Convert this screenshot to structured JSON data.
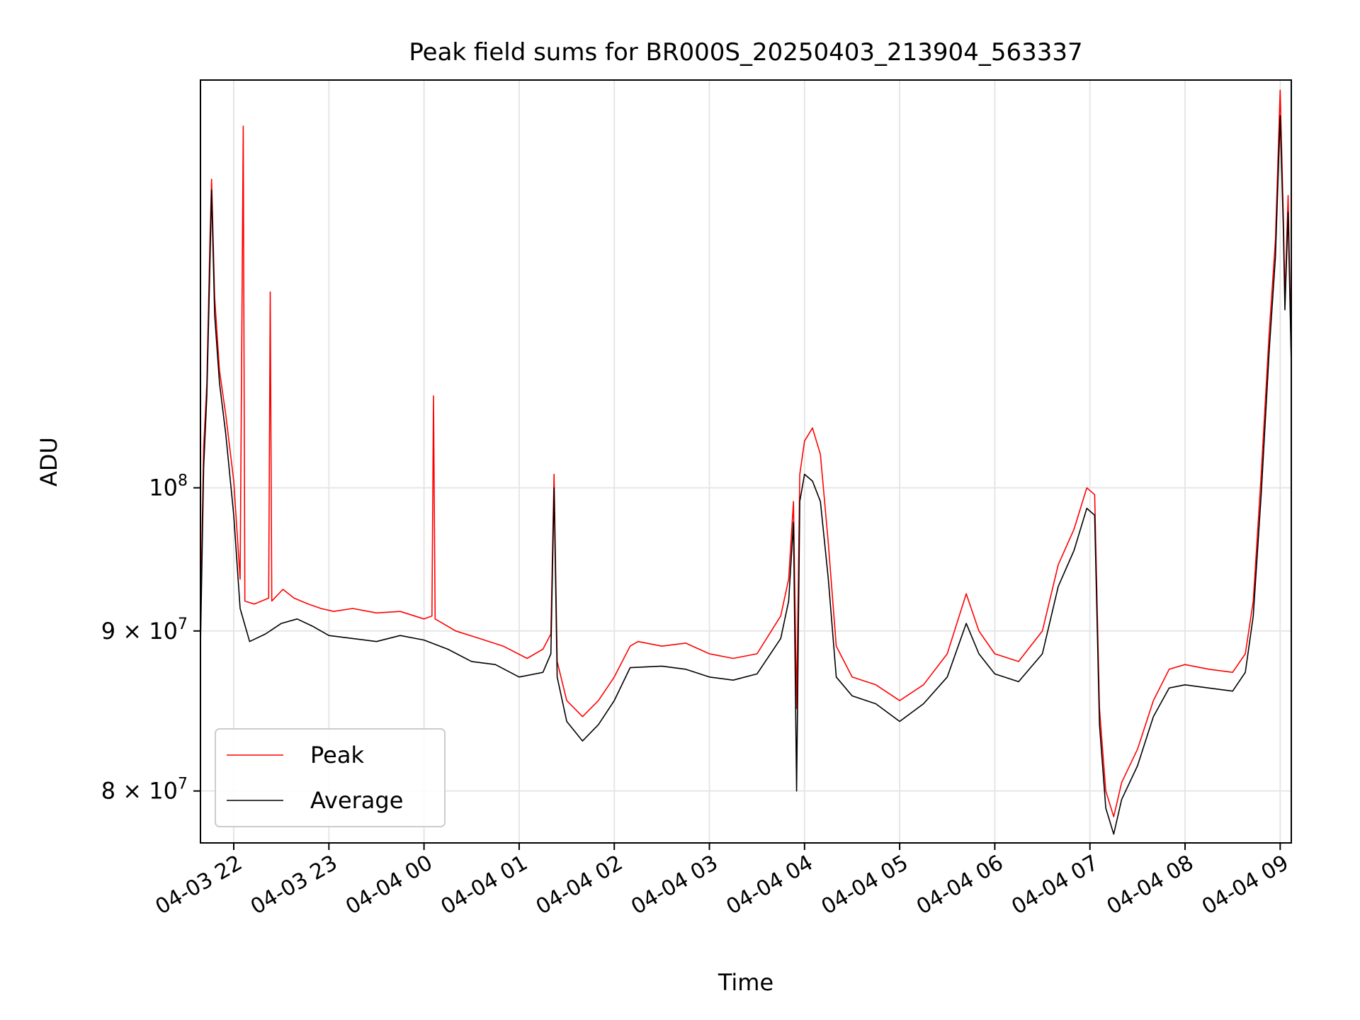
{
  "chart_data": {
    "type": "line",
    "title": "Peak field sums for BR000S_20250403_213904_563337",
    "xlabel": "Time",
    "ylabel": "ADU",
    "yscale": "log",
    "grid": true,
    "legend_position": "lower-left",
    "xlim": [
      "2025-04-03 21:39",
      "2025-04-04 09:07"
    ],
    "ylim": [
      77000000,
      135000000
    ],
    "x_ticks": [
      {
        "value": "2025-04-03 22:00",
        "label": "04-03 22"
      },
      {
        "value": "2025-04-03 23:00",
        "label": "04-03 23"
      },
      {
        "value": "2025-04-04 00:00",
        "label": "04-04 00"
      },
      {
        "value": "2025-04-04 01:00",
        "label": "04-04 01"
      },
      {
        "value": "2025-04-04 02:00",
        "label": "04-04 02"
      },
      {
        "value": "2025-04-04 03:00",
        "label": "04-04 03"
      },
      {
        "value": "2025-04-04 04:00",
        "label": "04-04 04"
      },
      {
        "value": "2025-04-04 05:00",
        "label": "04-04 05"
      },
      {
        "value": "2025-04-04 06:00",
        "label": "04-04 06"
      },
      {
        "value": "2025-04-04 07:00",
        "label": "04-04 07"
      },
      {
        "value": "2025-04-04 08:00",
        "label": "04-04 08"
      },
      {
        "value": "2025-04-04 09:00",
        "label": "04-04 09"
      }
    ],
    "y_ticks": [
      {
        "value": 80000000,
        "base": "8 × 10",
        "exp": "7"
      },
      {
        "value": 90000000,
        "base": "9 × 10",
        "exp": "7"
      },
      {
        "value": 100000000,
        "base": "10",
        "exp": "8"
      }
    ],
    "series": [
      {
        "name": "Peak",
        "color": "#ff0000",
        "points": [
          [
            "2025-04-03 21:39",
            90500000
          ],
          [
            "2025-04-03 21:41",
            103000000
          ],
          [
            "2025-04-03 21:43",
            108000000
          ],
          [
            "2025-04-03 21:45",
            120000000
          ],
          [
            "2025-04-03 21:46",
            125500000
          ],
          [
            "2025-04-03 21:48",
            115000000
          ],
          [
            "2025-04-03 21:51",
            109000000
          ],
          [
            "2025-04-03 21:55",
            105500000
          ],
          [
            "2025-04-03 22:00",
            100500000
          ],
          [
            "2025-04-03 22:04",
            93500000
          ],
          [
            "2025-04-03 22:06",
            130500000
          ],
          [
            "2025-04-03 22:07",
            92000000
          ],
          [
            "2025-04-03 22:13",
            91800000
          ],
          [
            "2025-04-03 22:22",
            92200000
          ],
          [
            "2025-04-03 22:23",
            115500000
          ],
          [
            "2025-04-03 22:24",
            92000000
          ],
          [
            "2025-04-03 22:31",
            92800000
          ],
          [
            "2025-04-03 22:38",
            92200000
          ],
          [
            "2025-04-03 22:47",
            91800000
          ],
          [
            "2025-04-03 22:55",
            91500000
          ],
          [
            "2025-04-03 23:03",
            91300000
          ],
          [
            "2025-04-03 23:15",
            91500000
          ],
          [
            "2025-04-03 23:30",
            91200000
          ],
          [
            "2025-04-03 23:45",
            91300000
          ],
          [
            "2025-04-04 00:00",
            90800000
          ],
          [
            "2025-04-04 00:05",
            91000000
          ],
          [
            "2025-04-04 00:06",
            107000000
          ],
          [
            "2025-04-04 00:07",
            90800000
          ],
          [
            "2025-04-04 00:20",
            90000000
          ],
          [
            "2025-04-04 00:35",
            89500000
          ],
          [
            "2025-04-04 00:50",
            89000000
          ],
          [
            "2025-04-04 01:05",
            88200000
          ],
          [
            "2025-04-04 01:15",
            88800000
          ],
          [
            "2025-04-04 01:20",
            89800000
          ],
          [
            "2025-04-04 01:22",
            101000000
          ],
          [
            "2025-04-04 01:24",
            88000000
          ],
          [
            "2025-04-04 01:30",
            85500000
          ],
          [
            "2025-04-04 01:40",
            84500000
          ],
          [
            "2025-04-04 01:50",
            85500000
          ],
          [
            "2025-04-04 02:00",
            87000000
          ],
          [
            "2025-04-04 02:10",
            89000000
          ],
          [
            "2025-04-04 02:15",
            89300000
          ],
          [
            "2025-04-04 02:30",
            89000000
          ],
          [
            "2025-04-04 02:45",
            89200000
          ],
          [
            "2025-04-04 03:00",
            88500000
          ],
          [
            "2025-04-04 03:15",
            88200000
          ],
          [
            "2025-04-04 03:30",
            88500000
          ],
          [
            "2025-04-04 03:45",
            91000000
          ],
          [
            "2025-04-04 03:50",
            93500000
          ],
          [
            "2025-04-04 03:53",
            99000000
          ],
          [
            "2025-04-04 03:55",
            85000000
          ],
          [
            "2025-04-04 03:57",
            101000000
          ],
          [
            "2025-04-04 04:00",
            103500000
          ],
          [
            "2025-04-04 04:05",
            104500000
          ],
          [
            "2025-04-04 04:10",
            102500000
          ],
          [
            "2025-04-04 04:15",
            96000000
          ],
          [
            "2025-04-04 04:20",
            89000000
          ],
          [
            "2025-04-04 04:30",
            87000000
          ],
          [
            "2025-04-04 04:45",
            86500000
          ],
          [
            "2025-04-04 05:00",
            85500000
          ],
          [
            "2025-04-04 05:15",
            86500000
          ],
          [
            "2025-04-04 05:30",
            88500000
          ],
          [
            "2025-04-04 05:42",
            92500000
          ],
          [
            "2025-04-04 05:50",
            90000000
          ],
          [
            "2025-04-04 06:00",
            88500000
          ],
          [
            "2025-04-04 06:15",
            88000000
          ],
          [
            "2025-04-04 06:30",
            90000000
          ],
          [
            "2025-04-04 06:40",
            94500000
          ],
          [
            "2025-04-04 06:50",
            97000000
          ],
          [
            "2025-04-04 06:58",
            100000000
          ],
          [
            "2025-04-04 07:03",
            99500000
          ],
          [
            "2025-04-04 07:06",
            85000000
          ],
          [
            "2025-04-04 07:10",
            80000000
          ],
          [
            "2025-04-04 07:15",
            78500000
          ],
          [
            "2025-04-04 07:20",
            80500000
          ],
          [
            "2025-04-04 07:30",
            82500000
          ],
          [
            "2025-04-04 07:40",
            85500000
          ],
          [
            "2025-04-04 07:50",
            87500000
          ],
          [
            "2025-04-04 08:00",
            87800000
          ],
          [
            "2025-04-04 08:15",
            87500000
          ],
          [
            "2025-04-04 08:30",
            87300000
          ],
          [
            "2025-04-04 08:38",
            88500000
          ],
          [
            "2025-04-04 08:43",
            92000000
          ],
          [
            "2025-04-04 08:48",
            101000000
          ],
          [
            "2025-04-04 08:53",
            112000000
          ],
          [
            "2025-04-04 08:57",
            120000000
          ],
          [
            "2025-04-04 09:00",
            134000000
          ],
          [
            "2025-04-04 09:02",
            122000000
          ],
          [
            "2025-04-04 09:03",
            115000000
          ],
          [
            "2025-04-04 09:05",
            124000000
          ],
          [
            "2025-04-04 09:07",
            110000000
          ]
        ]
      },
      {
        "name": "Average",
        "color": "#000000",
        "points": [
          [
            "2025-04-03 21:39",
            89000000
          ],
          [
            "2025-04-03 21:41",
            101500000
          ],
          [
            "2025-04-03 21:43",
            107000000
          ],
          [
            "2025-04-03 21:45",
            118000000
          ],
          [
            "2025-04-03 21:46",
            124500000
          ],
          [
            "2025-04-03 21:48",
            113500000
          ],
          [
            "2025-04-03 21:51",
            108000000
          ],
          [
            "2025-04-03 21:55",
            104000000
          ],
          [
            "2025-04-03 22:00",
            98000000
          ],
          [
            "2025-04-03 22:04",
            91500000
          ],
          [
            "2025-04-03 22:10",
            89300000
          ],
          [
            "2025-04-03 22:20",
            89800000
          ],
          [
            "2025-04-03 22:30",
            90500000
          ],
          [
            "2025-04-03 22:40",
            90800000
          ],
          [
            "2025-04-03 22:50",
            90300000
          ],
          [
            "2025-04-03 23:00",
            89700000
          ],
          [
            "2025-04-03 23:15",
            89500000
          ],
          [
            "2025-04-03 23:30",
            89300000
          ],
          [
            "2025-04-03 23:45",
            89700000
          ],
          [
            "2025-04-04 00:00",
            89400000
          ],
          [
            "2025-04-04 00:15",
            88800000
          ],
          [
            "2025-04-04 00:30",
            88000000
          ],
          [
            "2025-04-04 00:45",
            87800000
          ],
          [
            "2025-04-04 01:00",
            87000000
          ],
          [
            "2025-04-04 01:15",
            87300000
          ],
          [
            "2025-04-04 01:20",
            88500000
          ],
          [
            "2025-04-04 01:22",
            100000000
          ],
          [
            "2025-04-04 01:24",
            87000000
          ],
          [
            "2025-04-04 01:30",
            84200000
          ],
          [
            "2025-04-04 01:40",
            83000000
          ],
          [
            "2025-04-04 01:50",
            84000000
          ],
          [
            "2025-04-04 02:00",
            85500000
          ],
          [
            "2025-04-04 02:10",
            87600000
          ],
          [
            "2025-04-04 02:30",
            87700000
          ],
          [
            "2025-04-04 02:45",
            87500000
          ],
          [
            "2025-04-04 03:00",
            87000000
          ],
          [
            "2025-04-04 03:15",
            86800000
          ],
          [
            "2025-04-04 03:30",
            87200000
          ],
          [
            "2025-04-04 03:45",
            89500000
          ],
          [
            "2025-04-04 03:50",
            92000000
          ],
          [
            "2025-04-04 03:53",
            97500000
          ],
          [
            "2025-04-04 03:55",
            80000000
          ],
          [
            "2025-04-04 03:57",
            99000000
          ],
          [
            "2025-04-04 04:00",
            101000000
          ],
          [
            "2025-04-04 04:05",
            100500000
          ],
          [
            "2025-04-04 04:10",
            99000000
          ],
          [
            "2025-04-04 04:15",
            93500000
          ],
          [
            "2025-04-04 04:20",
            87000000
          ],
          [
            "2025-04-04 04:30",
            85800000
          ],
          [
            "2025-04-04 04:45",
            85300000
          ],
          [
            "2025-04-04 05:00",
            84200000
          ],
          [
            "2025-04-04 05:15",
            85300000
          ],
          [
            "2025-04-04 05:30",
            87000000
          ],
          [
            "2025-04-04 05:42",
            90500000
          ],
          [
            "2025-04-04 05:50",
            88500000
          ],
          [
            "2025-04-04 06:00",
            87200000
          ],
          [
            "2025-04-04 06:15",
            86700000
          ],
          [
            "2025-04-04 06:30",
            88500000
          ],
          [
            "2025-04-04 06:40",
            93000000
          ],
          [
            "2025-04-04 06:50",
            95500000
          ],
          [
            "2025-04-04 06:58",
            98500000
          ],
          [
            "2025-04-04 07:03",
            98000000
          ],
          [
            "2025-04-04 07:06",
            84000000
          ],
          [
            "2025-04-04 07:10",
            79000000
          ],
          [
            "2025-04-04 07:15",
            77500000
          ],
          [
            "2025-04-04 07:20",
            79500000
          ],
          [
            "2025-04-04 07:30",
            81500000
          ],
          [
            "2025-04-04 07:40",
            84500000
          ],
          [
            "2025-04-04 07:50",
            86300000
          ],
          [
            "2025-04-04 08:00",
            86500000
          ],
          [
            "2025-04-04 08:15",
            86300000
          ],
          [
            "2025-04-04 08:30",
            86100000
          ],
          [
            "2025-04-04 08:38",
            87300000
          ],
          [
            "2025-04-04 08:43",
            91000000
          ],
          [
            "2025-04-04 08:48",
            99500000
          ],
          [
            "2025-04-04 08:53",
            110500000
          ],
          [
            "2025-04-04 08:57",
            118500000
          ],
          [
            "2025-04-04 09:00",
            131500000
          ],
          [
            "2025-04-04 09:02",
            121000000
          ],
          [
            "2025-04-04 09:03",
            114000000
          ],
          [
            "2025-04-04 09:05",
            122500000
          ],
          [
            "2025-04-04 09:07",
            109500000
          ]
        ]
      }
    ]
  }
}
